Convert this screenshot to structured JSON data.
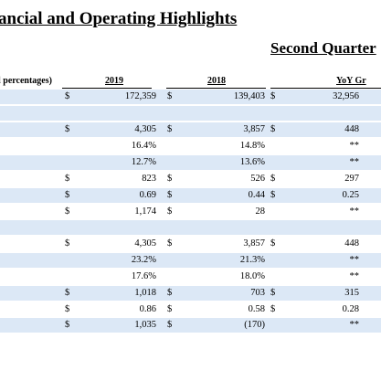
{
  "title": "ancial and Operating Highlights",
  "period": "Second Quarter",
  "columns": {
    "label": "l percentages)",
    "c1": "2019",
    "c2": "2018",
    "c3": "YoY Gr"
  },
  "rows": [
    {
      "c1s": "$",
      "c1": "172,359",
      "c2s": "$",
      "c2": "139,403",
      "c3s": "$",
      "c3": "32,956"
    },
    {},
    {
      "c1s": "$",
      "c1": "4,305",
      "c2s": "$",
      "c2": "3,857",
      "c3s": "$",
      "c3": "448"
    },
    {
      "c1": "16.4%",
      "c2": "14.8%",
      "c3": "**"
    },
    {
      "c1": "12.7%",
      "c2": "13.6%",
      "c3": "**"
    },
    {
      "c1s": "$",
      "c1": "823",
      "c2s": "$",
      "c2": "526",
      "c3s": "$",
      "c3": "297"
    },
    {
      "c1s": "$",
      "c1": "0.69",
      "c2s": "$",
      "c2": "0.44",
      "c3s": "$",
      "c3": "0.25"
    },
    {
      "c1s": "$",
      "c1": "1,174",
      "c2s": "$",
      "c2": "28",
      "c3": "**"
    },
    {},
    {
      "c1s": "$",
      "c1": "4,305",
      "c2s": "$",
      "c2": "3,857",
      "c3s": "$",
      "c3": "448"
    },
    {
      "c1": "23.2%",
      "c2": "21.3%",
      "c3": "**"
    },
    {
      "c1": "17.6%",
      "c2": "18.0%",
      "c3": "**"
    },
    {
      "c1s": "$",
      "c1": "1,018",
      "c2s": "$",
      "c2": "703",
      "c3s": "$",
      "c3": "315"
    },
    {
      "c1s": "$",
      "c1": "0.86",
      "c2s": "$",
      "c2": "0.58",
      "c3s": "$",
      "c3": "0.28"
    },
    {
      "c1s": "$",
      "c1": "1,035",
      "c2s": "$",
      "c2": "(170)",
      "c3": "**"
    }
  ],
  "colors": {
    "row_shade": "#dce8f6",
    "text": "#000000"
  }
}
